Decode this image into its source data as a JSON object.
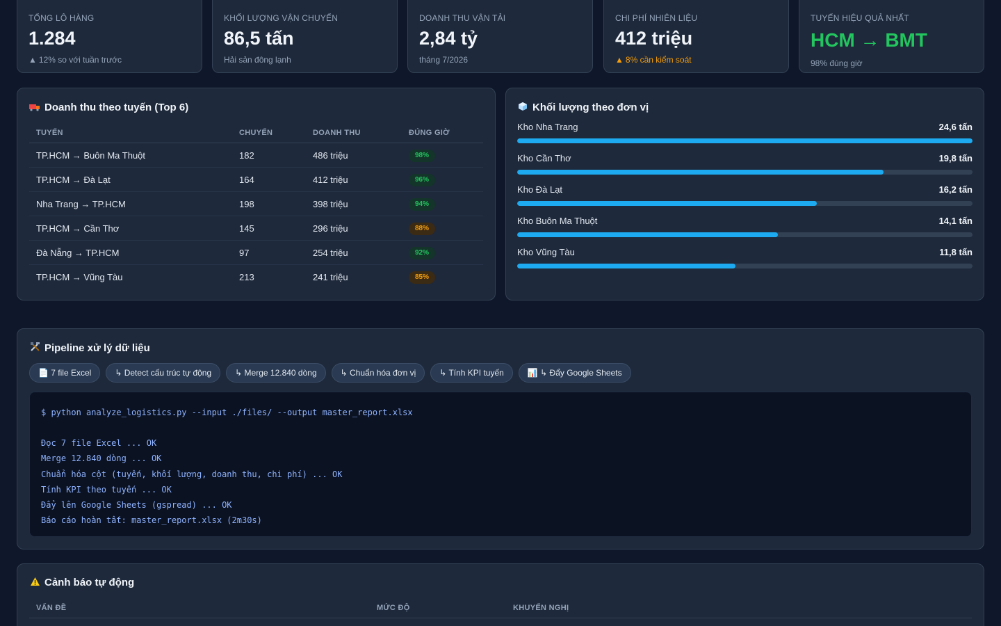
{
  "kpis": [
    {
      "label": "Tổng lô hàng",
      "value": "1.284",
      "sub": "12% so với tuần trước",
      "trend": "up"
    },
    {
      "label": "Khối lượng vận chuyển",
      "value": "86,5 tấn",
      "sub": "Hải sản đông lạnh"
    },
    {
      "label": "Doanh thu vận tải",
      "value": "2,84 tỷ",
      "sub": "tháng 7/2026"
    },
    {
      "label": "Chi phí nhiên liệu",
      "value": "412 triệu",
      "sub": "8% cần kiểm soát",
      "trend": "warn"
    },
    {
      "label": "Tuyến hiệu quả nhất",
      "value": "HCM → BMT",
      "sub": "98% đúng giờ"
    }
  ],
  "routes": {
    "title": "Doanh thu theo tuyến (Top 6)",
    "icon": "truck-icon",
    "columns": [
      "Tuyến",
      "Chuyến",
      "Doanh thu",
      "Đúng giờ"
    ],
    "rows": [
      {
        "route": "TP.HCM → Buôn Ma Thuột",
        "trips": "182",
        "revenue": "486 triệu",
        "ontime": "98%",
        "status": "good"
      },
      {
        "route": "TP.HCM → Đà Lạt",
        "trips": "164",
        "revenue": "412 triệu",
        "ontime": "96%",
        "status": "good"
      },
      {
        "route": "Nha Trang → TP.HCM",
        "trips": "198",
        "revenue": "398 triệu",
        "ontime": "94%",
        "status": "good"
      },
      {
        "route": "TP.HCM → Cần Thơ",
        "trips": "145",
        "revenue": "296 triệu",
        "ontime": "88%",
        "status": "warn"
      },
      {
        "route": "Đà Nẵng → TP.HCM",
        "trips": "97",
        "revenue": "254 triệu",
        "ontime": "92%",
        "status": "good"
      },
      {
        "route": "TP.HCM → Vũng Tàu",
        "trips": "213",
        "revenue": "241 triệu",
        "ontime": "85%",
        "status": "warn"
      }
    ]
  },
  "volume": {
    "title": "Khối lượng theo đơn vị",
    "icon": "ice-cube-icon",
    "max_value": 24.6,
    "items": [
      {
        "name": "Kho Nha Trang",
        "label": "24,6 tấn",
        "value": 24.6
      },
      {
        "name": "Kho Cần Thơ",
        "label": "19,8 tấn",
        "value": 19.8
      },
      {
        "name": "Kho Đà Lạt",
        "label": "16,2 tấn",
        "value": 16.2
      },
      {
        "name": "Kho Buôn Ma Thuột",
        "label": "14,1 tấn",
        "value": 14.1
      },
      {
        "name": "Kho Vũng Tàu",
        "label": "11,8 tấn",
        "value": 11.8
      }
    ]
  },
  "pipeline": {
    "title": "Pipeline xử lý dữ liệu",
    "icon": "tools-icon",
    "steps": [
      "7 file Excel",
      "↳ Detect cấu trúc tự động",
      "↳ Merge 12.840 dòng",
      "↳ Chuẩn hóa đơn vị",
      "↳ Tính KPI tuyến",
      "↳ Đẩy Google Sheets"
    ],
    "command": "$ python analyze_logistics.py --input ./files/ --output master_report.xlsx",
    "log": [
      "Đọc 7 file Excel ... OK",
      "Merge 12.840 dòng ... OK",
      "Chuẩn hóa cột (tuyến, khối lượng, doanh thu, chi phí) ... OK",
      "Tính KPI theo tuyến ... OK",
      "Đẩy lên Google Sheets (gspread) ... OK",
      "Báo cáo hoàn tất: master_report.xlsx (2m30s)"
    ]
  },
  "alerts": {
    "title": "Cảnh báo tự động",
    "icon": "warning-icon",
    "columns": [
      "Vấn đề",
      "Mức độ",
      "Khuyến nghị"
    ]
  },
  "colors": {
    "background": "#0f172a",
    "card": "#1e293b",
    "accent_bar": "#1eaaf0",
    "good": "#22c55e",
    "warn": "#f59e0b"
  }
}
